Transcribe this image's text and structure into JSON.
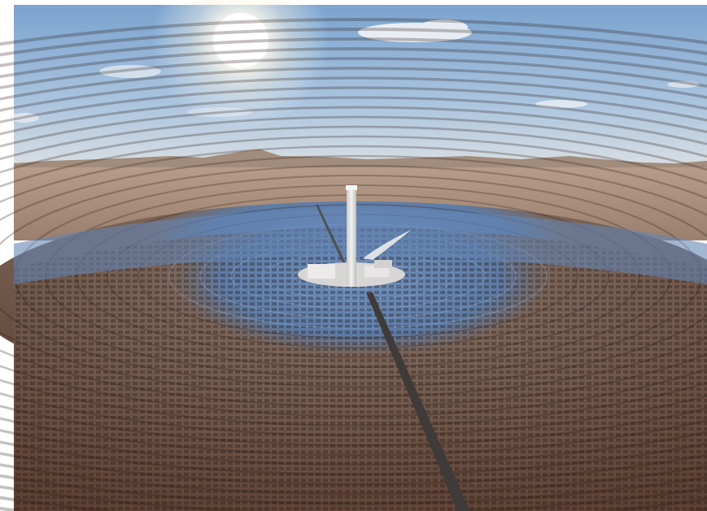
{
  "scene": {
    "subject": "solar-power-tower-heliostat-field",
    "colors": {
      "sky_top": "#7aa3cf",
      "sky_mid": "#aac4df",
      "sky_horizon": "#d9dfe3",
      "sun": "#ffffff",
      "mountains": "#9c8878",
      "desert": "#a48a7a",
      "mirrors_far": "#5f80ad",
      "mirrors_near": "#6a4a3c",
      "ground": "#8a6a5a",
      "tower": "#e4e4e2",
      "road": "#3e3a38"
    }
  }
}
